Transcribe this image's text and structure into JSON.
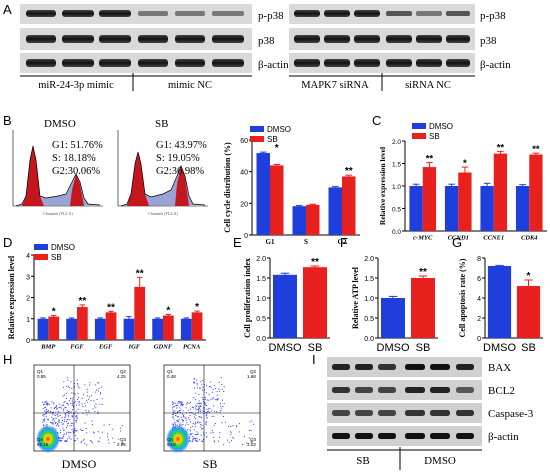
{
  "panels": {
    "A": {
      "letter": "A",
      "left_rows": [
        "p-p38",
        "p38",
        "β-actin"
      ],
      "right_rows": [
        "p-p38",
        "p38",
        "β-actin"
      ],
      "left_groups": [
        "miR-24-3p mimic",
        "mimic NC"
      ],
      "right_groups": [
        "MAPK7 siRNA",
        "siRNA NC"
      ]
    },
    "B": {
      "letter": "B",
      "flow_dmso": {
        "title": "DMSO",
        "g1": "G1: 51.76%",
        "s": "S: 18.18%",
        "g2": "G2:30.06%"
      },
      "flow_sb": {
        "title": "SB",
        "g1": "G1: 43.97%",
        "s": "S: 19.05%",
        "g2": "G2:36.98%"
      },
      "chart": {
        "type": "bar",
        "ylabel": "Cell cycle distribution (%)",
        "ylim": [
          0,
          60
        ],
        "yticks": [
          "0",
          "20",
          "40",
          "60"
        ],
        "categories": [
          "G1",
          "S",
          "G2"
        ],
        "series": [
          {
            "name": "DMSO",
            "color": "#1f3fdc",
            "values": [
              51.76,
              18.18,
              30.06
            ],
            "err": [
              0.6,
              0.4,
              0.5
            ]
          },
          {
            "name": "SB",
            "color": "#e8211e",
            "values": [
              43.97,
              19.05,
              36.98
            ],
            "err": [
              0.6,
              0.4,
              0.8
            ]
          }
        ],
        "sig": [
          "*",
          "",
          "**"
        ]
      }
    },
    "C": {
      "letter": "C",
      "chart": {
        "type": "bar",
        "ylabel": "Relative expression level",
        "ylim": [
          0,
          2.0
        ],
        "yticks": [
          "0.0",
          "0.5",
          "1.0",
          "1.5",
          "2.0"
        ],
        "categories": [
          "c-MYC",
          "CCND1",
          "CCNE1",
          "CDK4"
        ],
        "series": [
          {
            "name": "DMSO",
            "color": "#1f3fdc",
            "values": [
              1.0,
              1.0,
              1.0,
              1.0
            ],
            "err": [
              0.04,
              0.04,
              0.06,
              0.03
            ]
          },
          {
            "name": "SB",
            "color": "#e8211e",
            "values": [
              1.42,
              1.3,
              1.72,
              1.7
            ],
            "err": [
              0.1,
              0.12,
              0.05,
              0.03
            ]
          }
        ],
        "sig": [
          "**",
          "*",
          "**",
          "**"
        ]
      }
    },
    "D": {
      "letter": "D",
      "chart": {
        "type": "bar",
        "ylabel": "Relative expression level",
        "ylim": [
          0,
          4
        ],
        "yticks": [
          "0",
          "1",
          "2",
          "3",
          "4"
        ],
        "categories": [
          "BMP",
          "FGF",
          "EGF",
          "IGF",
          "GDNF",
          "PCNA"
        ],
        "series": [
          {
            "name": "DMSO",
            "color": "#1f3fdc",
            "values": [
              1.0,
              1.0,
              1.0,
              1.0,
              1.0,
              1.0
            ],
            "err": [
              0.04,
              0.04,
              0.04,
              0.1,
              0.04,
              0.04
            ]
          },
          {
            "name": "SB",
            "color": "#e8211e",
            "values": [
              1.1,
              1.55,
              1.3,
              2.5,
              1.15,
              1.3
            ],
            "err": [
              0.06,
              0.1,
              0.05,
              0.45,
              0.05,
              0.06
            ]
          }
        ],
        "sig": [
          "*",
          "**",
          "**",
          "**",
          "*",
          "*"
        ]
      }
    },
    "E": {
      "letter": "E",
      "chart": {
        "type": "bar",
        "ylabel": "Cell proliferation index",
        "ylim": [
          0,
          2.0
        ],
        "yticks": [
          "0.0",
          "0.5",
          "1.0",
          "1.5",
          "2.0"
        ],
        "categories": [
          "DMSO",
          "SB"
        ],
        "values": [
          1.58,
          1.77
        ],
        "err": [
          0.04,
          0.03
        ],
        "colors": [
          "#1f3fdc",
          "#e8211e"
        ],
        "sig": [
          "",
          "**"
        ]
      }
    },
    "F": {
      "letter": "F",
      "chart": {
        "type": "bar",
        "ylabel": "Relative ATP level",
        "ylim": [
          0,
          2.0
        ],
        "yticks": [
          "0.0",
          "0.5",
          "1.0",
          "1.5",
          "2.0"
        ],
        "categories": [
          "DMSO",
          "SB"
        ],
        "values": [
          1.0,
          1.5
        ],
        "err": [
          0.04,
          0.05
        ],
        "colors": [
          "#1f3fdc",
          "#e8211e"
        ],
        "sig": [
          "",
          "**"
        ]
      }
    },
    "G": {
      "letter": "G",
      "chart": {
        "type": "bar",
        "ylabel": "Cell apoptosis rate (%)",
        "ylim": [
          0,
          8
        ],
        "yticks": [
          "0",
          "2",
          "4",
          "6",
          "8"
        ],
        "categories": [
          "DMSO",
          "SB"
        ],
        "values": [
          7.2,
          5.2
        ],
        "err": [
          0.06,
          0.6
        ],
        "colors": [
          "#1f3fdc",
          "#e8211e"
        ],
        "sig": [
          "",
          "*"
        ]
      }
    },
    "H": {
      "letter": "H",
      "dmso": {
        "label": "DMSO",
        "q1": "Q1",
        "q1v": "0.85",
        "q2": "Q2",
        "q2v": "4.25",
        "q3": "Q3",
        "q3v": "2.95",
        "q4": "Q4",
        "q4v": "92.15"
      },
      "sb": {
        "label": "SB",
        "q1": "Q1",
        "q1v": "0.48",
        "q2": "Q2",
        "q2v": "1.68",
        "q3": "Q3",
        "q3v": "3.03",
        "q4": "Q4",
        "q4v": "94.8"
      }
    },
    "I": {
      "letter": "I",
      "rows": [
        "BAX",
        "BCL2",
        "Caspase-3",
        "β-actin"
      ],
      "groups": [
        "SB",
        "DMSO"
      ]
    }
  }
}
